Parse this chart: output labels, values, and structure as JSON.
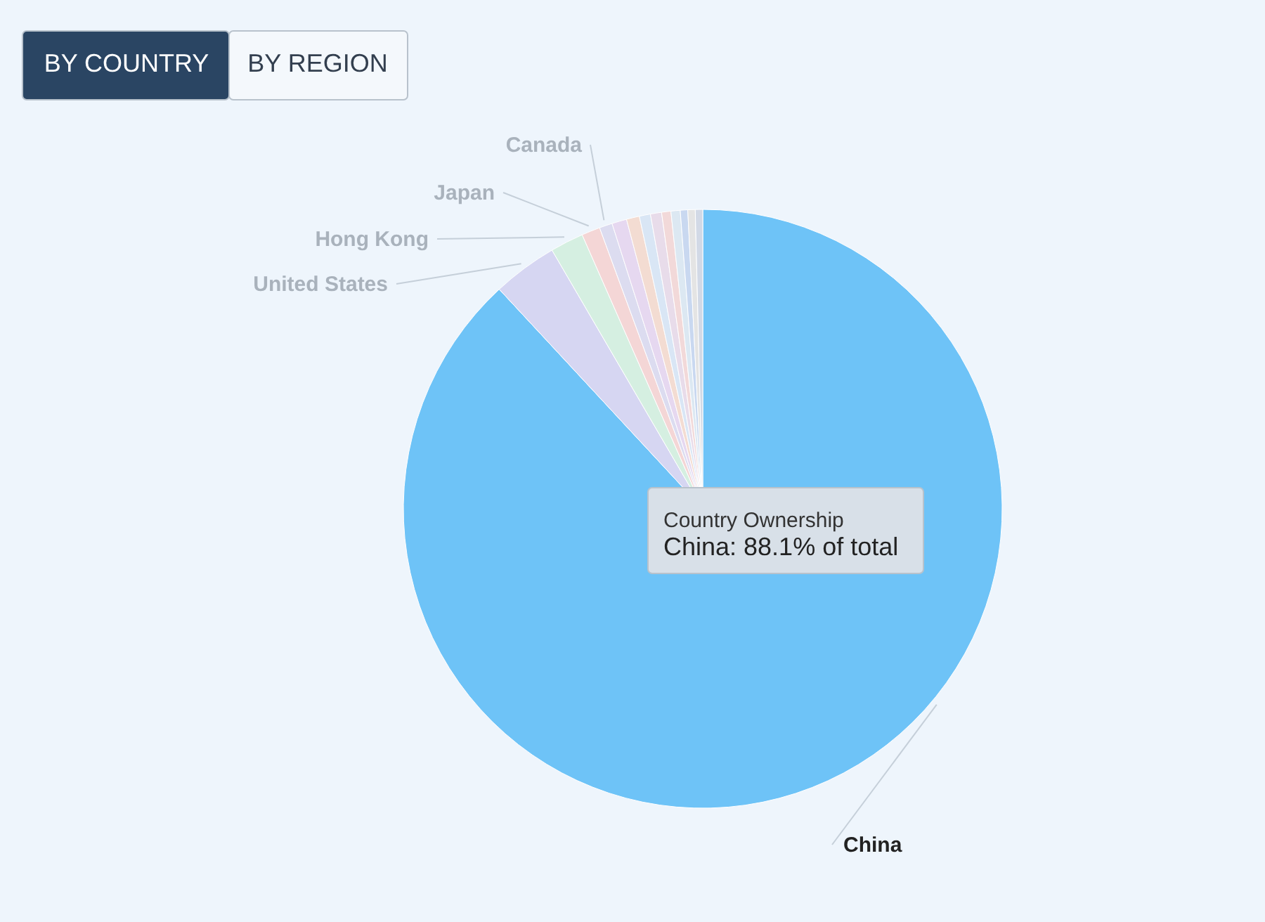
{
  "chart_data": {
    "type": "pie",
    "categories": [
      "China",
      "United States",
      "Hong Kong",
      "Japan",
      "Canada",
      null,
      null,
      null,
      null,
      null,
      null,
      null,
      null,
      null
    ],
    "values": [
      88.1,
      3.5,
      1.8,
      1.0,
      0.7,
      0.8,
      0.7,
      0.6,
      0.6,
      0.5,
      0.5,
      0.4,
      0.4,
      0.4
    ],
    "colors": [
      "#6ec3f7",
      "#d6d6f2",
      "#d5efe1",
      "#f4d6d6",
      "#dcdcf0",
      "#e6d8f0",
      "#f3dcd2",
      "#d9e6f5",
      "#e8dcea",
      "#f2d9d9",
      "#dce8f2",
      "#c9d8f0",
      "#e4e4e4",
      "#d2d9e6"
    ],
    "annotations": [
      "BY COUNTRY",
      "BY REGION",
      "Country Ownership",
      "China: 88.1% of total"
    ]
  }
}
